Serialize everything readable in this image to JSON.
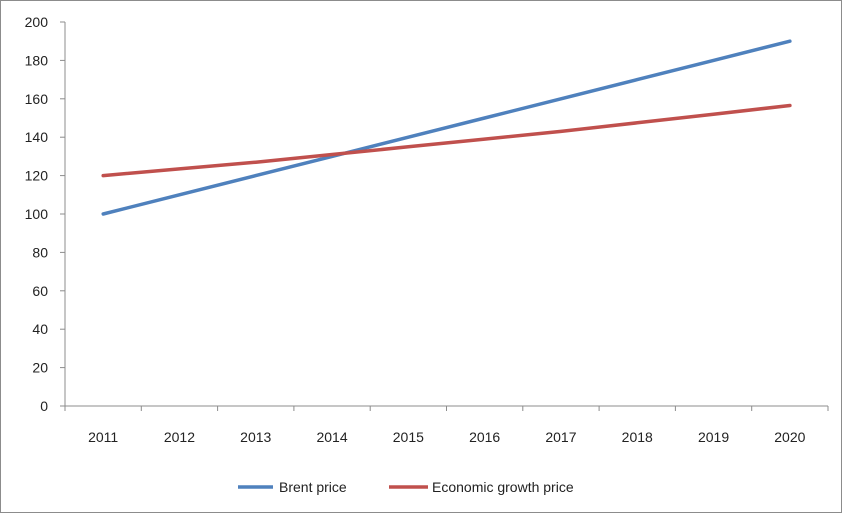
{
  "chart_data": {
    "type": "line",
    "title": "",
    "xlabel": "",
    "ylabel": "",
    "categories": [
      "2011",
      "2012",
      "2013",
      "2014",
      "2015",
      "2016",
      "2017",
      "2018",
      "2019",
      "2020"
    ],
    "ylim": [
      0,
      200
    ],
    "yticks": [
      0,
      20,
      40,
      60,
      80,
      100,
      120,
      140,
      160,
      180,
      200
    ],
    "grid": false,
    "legend_position": "bottom",
    "series": [
      {
        "name": "Brent price",
        "color": "#4f81bd",
        "values": [
          100,
          110,
          120,
          130,
          140,
          150,
          160,
          170,
          180,
          190
        ]
      },
      {
        "name": "Economic growth price",
        "color": "#c0504d",
        "values": [
          120,
          123.5,
          127,
          131,
          135,
          139,
          143,
          147.5,
          152,
          156.5
        ]
      }
    ]
  }
}
